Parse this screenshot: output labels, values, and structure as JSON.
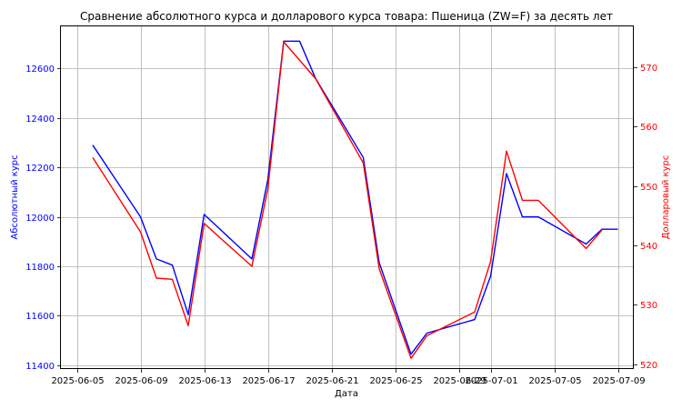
{
  "chart_data": {
    "type": "line",
    "title": "Сравнение абсолютного курса и долларового курса товара: Пшеница (ZW=F) за десять лет",
    "xlabel": "Дата",
    "ylabel_left": "Абсолютный курс",
    "ylabel_right": "Долларовый курс",
    "grid": true,
    "x_ticks": [
      "2025-06-05",
      "2025-06-09",
      "2025-06-13",
      "2025-06-17",
      "2025-06-21",
      "2025-06-25",
      "2025-06-29",
      "2025-07-01",
      "2025-07-05",
      "2025-07-09"
    ],
    "x_range": [
      "2025-06-04",
      "2025-07-10"
    ],
    "y_left": {
      "range": [
        11385,
        12770
      ],
      "ticks": [
        11400,
        11600,
        11800,
        12000,
        12200,
        12400,
        12600
      ],
      "color": "#0000ff"
    },
    "y_right": {
      "range": [
        519.2,
        576.9
      ],
      "ticks": [
        520,
        530,
        540,
        550,
        560,
        570
      ],
      "color": "#ff0000"
    },
    "series": [
      {
        "axis": "left",
        "color": "#0000ff",
        "x": [
          "2025-06-06",
          "2025-06-09",
          "2025-06-10",
          "2025-06-11",
          "2025-06-12",
          "2025-06-13",
          "2025-06-16",
          "2025-06-17",
          "2025-06-18",
          "2025-06-19",
          "2025-06-20",
          "2025-06-23",
          "2025-06-24",
          "2025-06-26",
          "2025-06-27",
          "2025-06-30",
          "2025-07-01",
          "2025-07-02",
          "2025-07-03",
          "2025-07-04",
          "2025-07-07",
          "2025-07-08",
          "2025-07-09"
        ],
        "y": [
          12290,
          12000,
          11830,
          11805,
          11605,
          12010,
          11830,
          12150,
          12710,
          12710,
          12560,
          12240,
          11815,
          11445,
          11530,
          11585,
          11760,
          12175,
          12000,
          12000,
          11890,
          11950,
          11950
        ]
      },
      {
        "axis": "right",
        "color": "#ff0000",
        "x": [
          "2025-06-06",
          "2025-06-09",
          "2025-06-10",
          "2025-06-11",
          "2025-06-12",
          "2025-06-13",
          "2025-06-16",
          "2025-06-17",
          "2025-06-18",
          "2025-06-20",
          "2025-06-23",
          "2025-06-24",
          "2025-06-26",
          "2025-06-27",
          "2025-06-30",
          "2025-07-01",
          "2025-07-02",
          "2025-07-03",
          "2025-07-04",
          "2025-07-07",
          "2025-07-08"
        ],
        "y": [
          554.8,
          542.3,
          534.5,
          534.3,
          526.5,
          543.7,
          536.5,
          549.5,
          574.3,
          568.1,
          553.9,
          536.1,
          521.0,
          524.8,
          528.8,
          537.3,
          555.9,
          547.6,
          547.6,
          539.5,
          542.6
        ]
      }
    ]
  }
}
